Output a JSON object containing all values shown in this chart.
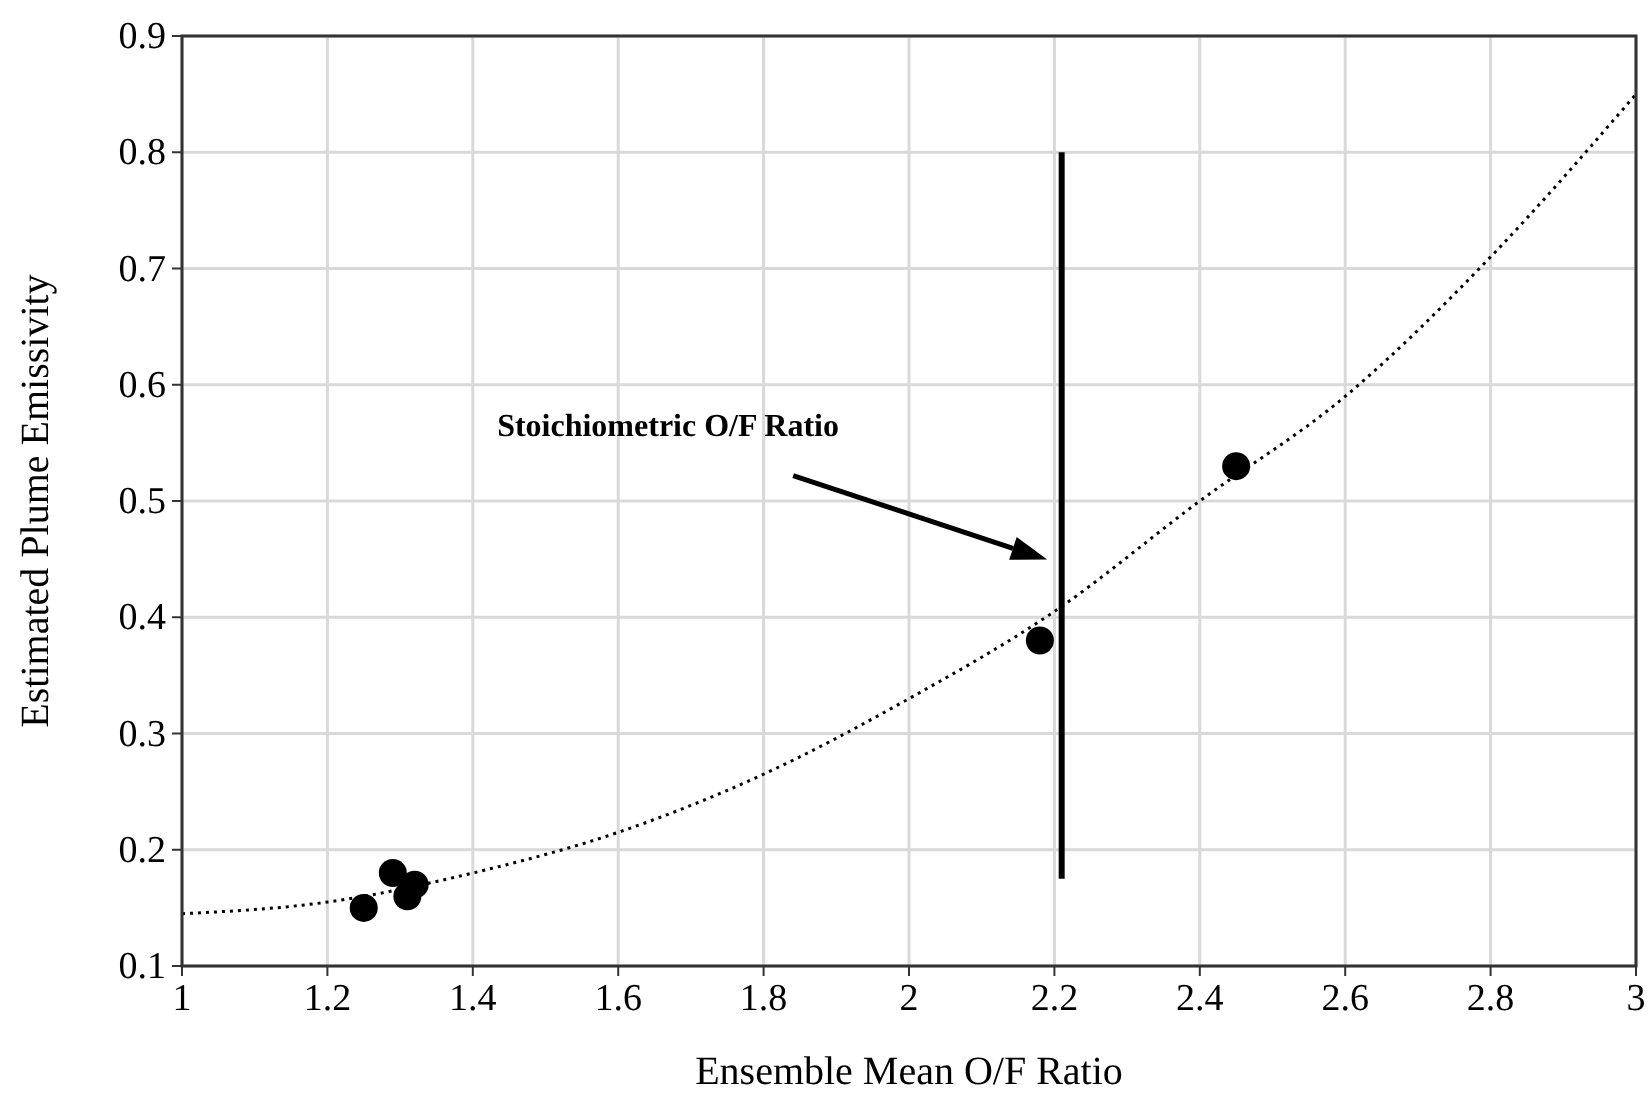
{
  "chart_data": {
    "type": "scatter",
    "xlabel": "Ensemble Mean O/F Ratio",
    "ylabel": "Estimated Plume Emissivity",
    "xlim": [
      1,
      3
    ],
    "ylim": [
      0.1,
      0.9
    ],
    "xticks": [
      1,
      1.2,
      1.4,
      1.6,
      1.8,
      2,
      2.2,
      2.4,
      2.6,
      2.8,
      3
    ],
    "yticks": [
      0.1,
      0.2,
      0.3,
      0.4,
      0.5,
      0.6,
      0.7,
      0.8,
      0.9
    ],
    "grid": true,
    "series": [
      {
        "marker": "circle",
        "color": "#000000",
        "x": [
          1.25,
          1.29,
          1.31,
          1.32,
          2.18,
          2.45
        ],
        "values": [
          0.15,
          0.18,
          0.16,
          0.17,
          0.38,
          0.53
        ]
      },
      {
        "type": "line",
        "color": "#000000",
        "line_style": "dotted",
        "x": [
          1,
          1.2,
          1.4,
          1.6,
          1.8,
          2,
          2.2,
          2.4,
          2.6,
          2.8,
          3
        ],
        "values": [
          0.145,
          0.155,
          0.18,
          0.215,
          0.265,
          0.33,
          0.405,
          0.5,
          0.59,
          0.71,
          0.85
        ]
      },
      {
        "type": "line",
        "color": "#000000",
        "line_style": "solid",
        "x": [
          2.21,
          2.21
        ],
        "values": [
          0.175,
          0.8
        ]
      }
    ],
    "annotations": [
      "Stoichiometric O/F Ratio"
    ]
  }
}
